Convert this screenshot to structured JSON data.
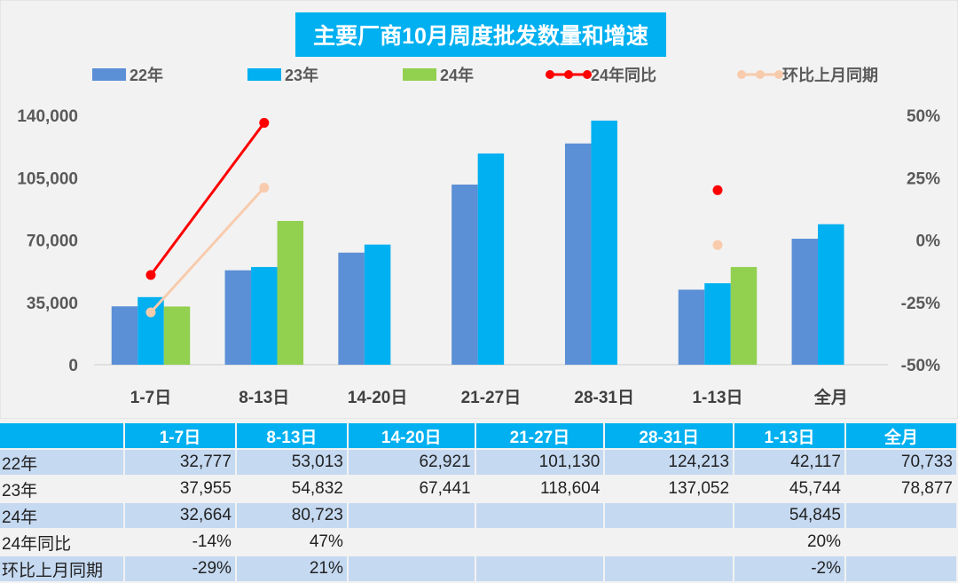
{
  "chart_data": {
    "type": "bar",
    "title": "主要厂商10月周度批发数量和增速",
    "categories": [
      "1-7日",
      "8-13日",
      "14-20日",
      "21-27日",
      "28-31日",
      "1-13日",
      "全月"
    ],
    "series": [
      {
        "name": "22年",
        "kind": "bar",
        "color": "#5b8fd6",
        "values": [
          32777,
          53013,
          62921,
          101130,
          124213,
          42117,
          70733
        ]
      },
      {
        "name": "23年",
        "kind": "bar",
        "color": "#00b0f0",
        "values": [
          37955,
          54832,
          67441,
          118604,
          137052,
          45744,
          78877
        ]
      },
      {
        "name": "24年",
        "kind": "bar",
        "color": "#92d050",
        "values": [
          32664,
          80723,
          null,
          null,
          null,
          54845,
          null
        ]
      },
      {
        "name": "24年同比",
        "kind": "line",
        "axis": "right",
        "color": "#ff0000",
        "values": [
          -14,
          47,
          null,
          null,
          null,
          20,
          null
        ]
      },
      {
        "name": "环比上月同期",
        "kind": "line",
        "axis": "right",
        "color": "#f8cbad",
        "values": [
          -29,
          21,
          null,
          null,
          null,
          -2,
          null
        ]
      }
    ],
    "ylim": [
      0,
      140000
    ],
    "yticks": [
      "140,000",
      "105,000",
      "70,000",
      "35,000",
      "0"
    ],
    "y2lim": [
      -50,
      50
    ],
    "y2ticks": [
      "50%",
      "25%",
      "0%",
      "-25%",
      "-50%"
    ],
    "legend": "top",
    "grid": false
  },
  "table": {
    "headers": [
      "",
      "1-7日",
      "8-13日",
      "14-20日",
      "21-27日",
      "28-31日",
      "1-13日",
      "全月"
    ],
    "rows": [
      [
        "22年",
        "32,777",
        "53,013",
        "62,921",
        "101,130",
        "124,213",
        "42,117",
        "70,733"
      ],
      [
        "23年",
        "37,955",
        "54,832",
        "67,441",
        "118,604",
        "137,052",
        "45,744",
        "78,877"
      ],
      [
        "24年",
        "32,664",
        "80,723",
        "",
        "",
        "",
        "54,845",
        ""
      ],
      [
        "24年同比",
        "-14%",
        "47%",
        "",
        "",
        "",
        "20%",
        ""
      ],
      [
        "环比上月同期",
        "-29%",
        "21%",
        "",
        "",
        "",
        "-2%",
        ""
      ]
    ]
  }
}
